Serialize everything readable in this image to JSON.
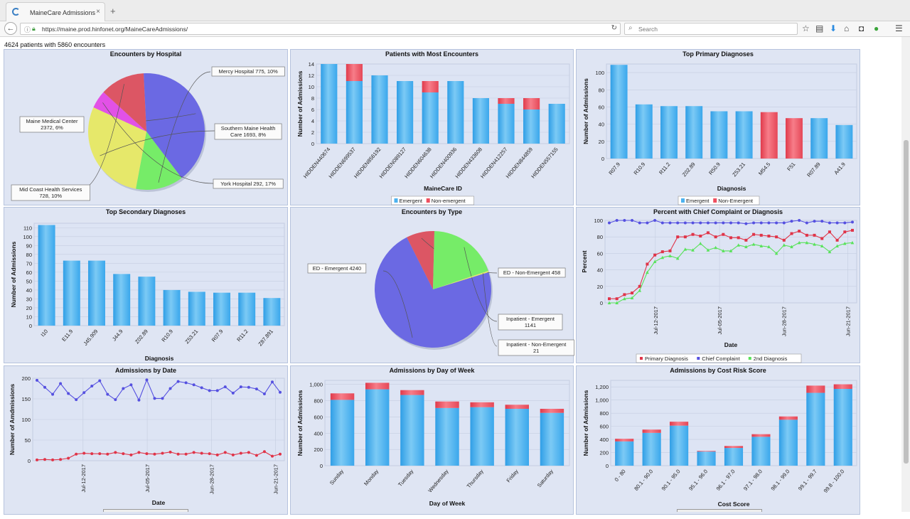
{
  "browser": {
    "tab_title": "MaineCare Admissions",
    "tab_close": "×",
    "new_tab": "+",
    "back": "←",
    "url": "https://maine.prod.hinfonet.org/MaineCareAdmissions/",
    "reload": "↻",
    "search_placeholder": "Search",
    "toolbar_icons": [
      "star-icon",
      "library-icon",
      "download-icon",
      "home-icon",
      "pocket-icon",
      "extension-icon",
      "menu-icon"
    ]
  },
  "header": {
    "summary": "4624 patients with 5860 encounters"
  },
  "colors": {
    "emergent": "#4db2ef",
    "non_emergent": "#ef4f5f",
    "panel_bg": "#dfe5f3",
    "pie_blue": "#6b69e3",
    "pie_yellow": "#e6e86a",
    "pie_green": "#76ec68",
    "pie_red": "#dc5664",
    "pie_magenta": "#e251e6"
  },
  "chart_data": [
    {
      "id": "hospital",
      "type": "pie",
      "title": "Encounters by Hospital",
      "slices": [
        {
          "label": "Maine Medical Center",
          "value": 2372,
          "text1": "Maine Medical Center",
          "text2": "2372, 6%"
        },
        {
          "label": "Mercy Hospital",
          "value": 775,
          "text1": "Mercy Hospital 775, 10%",
          "text2": ""
        },
        {
          "label": "Southern Maine Health Care",
          "value": 1693,
          "text1": "Southern Maine Health",
          "text2": "Care 1693, 8%"
        },
        {
          "label": "York Hospital",
          "value": 292,
          "text1": "York Hospital 292, 17%",
          "text2": ""
        },
        {
          "label": "Mid Coast Health Services",
          "value": 728,
          "text1": "Mid Coast Health Services",
          "text2": "728, 10%"
        }
      ]
    },
    {
      "id": "patients",
      "type": "bar",
      "title": "Patients with Most Encounters",
      "xlabel": "MaineCare ID",
      "ylabel": "Number of Admissions",
      "ylim": [
        0,
        14
      ],
      "yticks": [
        "0",
        "2",
        "4",
        "6",
        "8",
        "10",
        "12",
        "14"
      ],
      "categories": [
        "HIDDEN440674",
        "HIDDEN699537",
        "HIDDEN856192",
        "HIDDEN089127",
        "HIDDEN604638",
        "HIDDEN400936",
        "HIDDEN433608",
        "HIDDEN412257",
        "HIDDEN844859",
        "HIDDEN557155"
      ],
      "series": [
        {
          "name": "Emergent",
          "values": [
            14,
            11,
            12,
            11,
            9,
            11,
            8,
            7,
            6,
            7
          ]
        },
        {
          "name": "Non-emergent",
          "values": [
            0,
            3,
            0,
            0,
            2,
            0,
            0,
            1,
            2,
            0
          ]
        }
      ],
      "legend": [
        "Emergent",
        "Non-emergent"
      ]
    },
    {
      "id": "primary",
      "type": "bar",
      "title": "Top Primary Diagnoses",
      "xlabel": "Diagnosis",
      "ylabel": "Number of Admissions",
      "ylim": [
        0,
        110
      ],
      "yticks": [
        "0",
        "20",
        "40",
        "60",
        "80",
        "100"
      ],
      "categories": [
        "R07.9",
        "R10.9",
        "R11.2",
        "Z02.89",
        "R50.9",
        "Z53.21",
        "M54.5",
        "F51",
        "R07.89",
        "A41.9"
      ],
      "series": [
        {
          "name": "Emergent",
          "values": [
            109,
            63,
            61,
            61,
            55,
            55,
            0,
            0,
            47,
            39
          ]
        },
        {
          "name": "Non-Emergent",
          "values": [
            0,
            0,
            0,
            0,
            0,
            0,
            54,
            47,
            0,
            0
          ]
        }
      ],
      "legend": [
        "Emergent",
        "Non-Emergent"
      ]
    },
    {
      "id": "secondary",
      "type": "bar",
      "title": "Top Secondary Diagnoses",
      "xlabel": "Diagnosis",
      "ylabel": "Number of Admissions",
      "ylim": [
        0,
        115
      ],
      "yticks": [
        "0",
        "10",
        "20",
        "30",
        "40",
        "50",
        "60",
        "70",
        "80",
        "90",
        "100",
        "110"
      ],
      "categories": [
        "I10",
        "E11.9",
        "J45.909",
        "J44.9",
        "Z02.89",
        "R10.9",
        "Z53.21",
        "R07.9",
        "R11.2",
        "Z87.891"
      ],
      "series": [
        {
          "name": "Emergent",
          "values": [
            113,
            73,
            73,
            58,
            55,
            40,
            38,
            37,
            37,
            31
          ]
        }
      ]
    },
    {
      "id": "type",
      "type": "pie",
      "title": "Encounters by Type",
      "slices": [
        {
          "label": "ED - Emergent",
          "value": 4240,
          "text1": "ED - Emergent 4240",
          "text2": ""
        },
        {
          "label": "ED - Non-Emergent",
          "value": 458,
          "text1": "ED - Non-Emergent 458",
          "text2": ""
        },
        {
          "label": "Inpatient - Emergent",
          "value": 1141,
          "text1": "Inpatient - Emergent",
          "text2": "1141"
        },
        {
          "label": "Inpatient - Non-Emergent",
          "value": 21,
          "text1": "Inpatient - Non-Emergent",
          "text2": "21"
        }
      ]
    },
    {
      "id": "percent",
      "type": "line",
      "title": "Percent with Chief Complaint or Diagnosis",
      "xlabel": "Date",
      "ylabel": "Percent",
      "ylim": [
        0,
        100
      ],
      "yticks": [
        "0",
        "20",
        "40",
        "60",
        "80",
        "100"
      ],
      "xticks": [
        "Jul-12-2017",
        "Jul-05-2017",
        "Jun-28-2017",
        "Jun-21-2017"
      ],
      "series": [
        {
          "name": "Primary Diagnosis",
          "values": [
            5,
            5,
            10,
            12,
            20,
            47,
            58,
            62,
            63,
            80,
            80,
            83,
            81,
            85,
            80,
            83,
            79,
            79,
            76,
            83,
            82,
            81,
            80,
            76,
            84,
            87,
            82,
            82,
            78,
            86,
            76,
            86,
            88
          ]
        },
        {
          "name": "Chief Complaint",
          "values": [
            97,
            100,
            100,
            100,
            97,
            97,
            100,
            97,
            97,
            97,
            97,
            97,
            97,
            97,
            97,
            97,
            97,
            97,
            96,
            97,
            97,
            97,
            97,
            97,
            99,
            100,
            97,
            99,
            99,
            97,
            97,
            97,
            98
          ]
        },
        {
          "name": "2nd Diagnosis",
          "values": [
            0,
            0,
            5,
            6,
            15,
            37,
            50,
            55,
            57,
            54,
            65,
            64,
            72,
            64,
            67,
            63,
            63,
            70,
            68,
            71,
            69,
            68,
            60,
            70,
            68,
            73,
            73,
            71,
            69,
            62,
            69,
            72,
            73
          ]
        }
      ],
      "legend": [
        "Primary Diagnosis",
        "Chief Complaint",
        "2nd Diagnosis"
      ]
    },
    {
      "id": "date",
      "type": "line",
      "title": "Admissions by Date",
      "xlabel": "Date",
      "ylabel": "Number of Amdmissions",
      "ylim": [
        0,
        200
      ],
      "yticks": [
        "0",
        "50",
        "100",
        "150",
        "200"
      ],
      "xticks": [
        "Jul-12-2017",
        "Jul-05-2017",
        "Jun-28-2017",
        "Jun-21-2017"
      ],
      "series": [
        {
          "name": "Emergent",
          "values": [
            195,
            178,
            161,
            187,
            163,
            148,
            165,
            181,
            194,
            161,
            148,
            175,
            184,
            147,
            196,
            151,
            151,
            175,
            192,
            189,
            184,
            177,
            170,
            170,
            179,
            164,
            179,
            178,
            174,
            162,
            191,
            166
          ]
        },
        {
          "name": "Non-Emergent",
          "values": [
            2,
            3,
            2,
            3,
            6,
            16,
            18,
            17,
            17,
            16,
            20,
            17,
            14,
            20,
            17,
            16,
            18,
            21,
            16,
            16,
            20,
            18,
            17,
            14,
            20,
            14,
            18,
            20,
            13,
            22,
            11,
            16
          ]
        }
      ]
    },
    {
      "id": "dow",
      "type": "bar",
      "title": "Admissions by Day of Week",
      "xlabel": "Day of Week",
      "ylabel": "Number of Admissions",
      "ylim": [
        0,
        1050
      ],
      "yticks": [
        "0",
        "200",
        "400",
        "600",
        "800",
        "1,000"
      ],
      "categories": [
        "Sunday",
        "Monday",
        "Tuesday",
        "Wednesday",
        "Thursday",
        "Friday",
        "Saturday"
      ],
      "series": [
        {
          "name": "Emergent",
          "values": [
            810,
            940,
            870,
            710,
            720,
            700,
            650
          ]
        },
        {
          "name": "Non-Emergent",
          "values": [
            80,
            80,
            60,
            80,
            60,
            50,
            50
          ]
        }
      ]
    },
    {
      "id": "risk",
      "type": "bar",
      "title": "Admissions by Cost Risk Score",
      "xlabel": "Cost Score",
      "ylabel": "Number of Admissions",
      "ylim": [
        0,
        1300
      ],
      "yticks": [
        "0",
        "200",
        "400",
        "600",
        "800",
        "1,000",
        "1,200"
      ],
      "categories": [
        "0 - 80",
        "80.1 - 90.0",
        "90.1 - 95.0",
        "95.1 - 96.0",
        "96.1 - 97.0",
        "97.1 - 98.0",
        "98.1 - 99.0",
        "99.1 - 99.7",
        "99.8 - 100.0"
      ],
      "series": [
        {
          "name": "Emergent",
          "values": [
            370,
            500,
            610,
            215,
            270,
            440,
            700,
            1110,
            1170
          ]
        },
        {
          "name": "Non-Emergent",
          "values": [
            40,
            50,
            60,
            10,
            30,
            40,
            50,
            110,
            70
          ]
        }
      ]
    }
  ]
}
